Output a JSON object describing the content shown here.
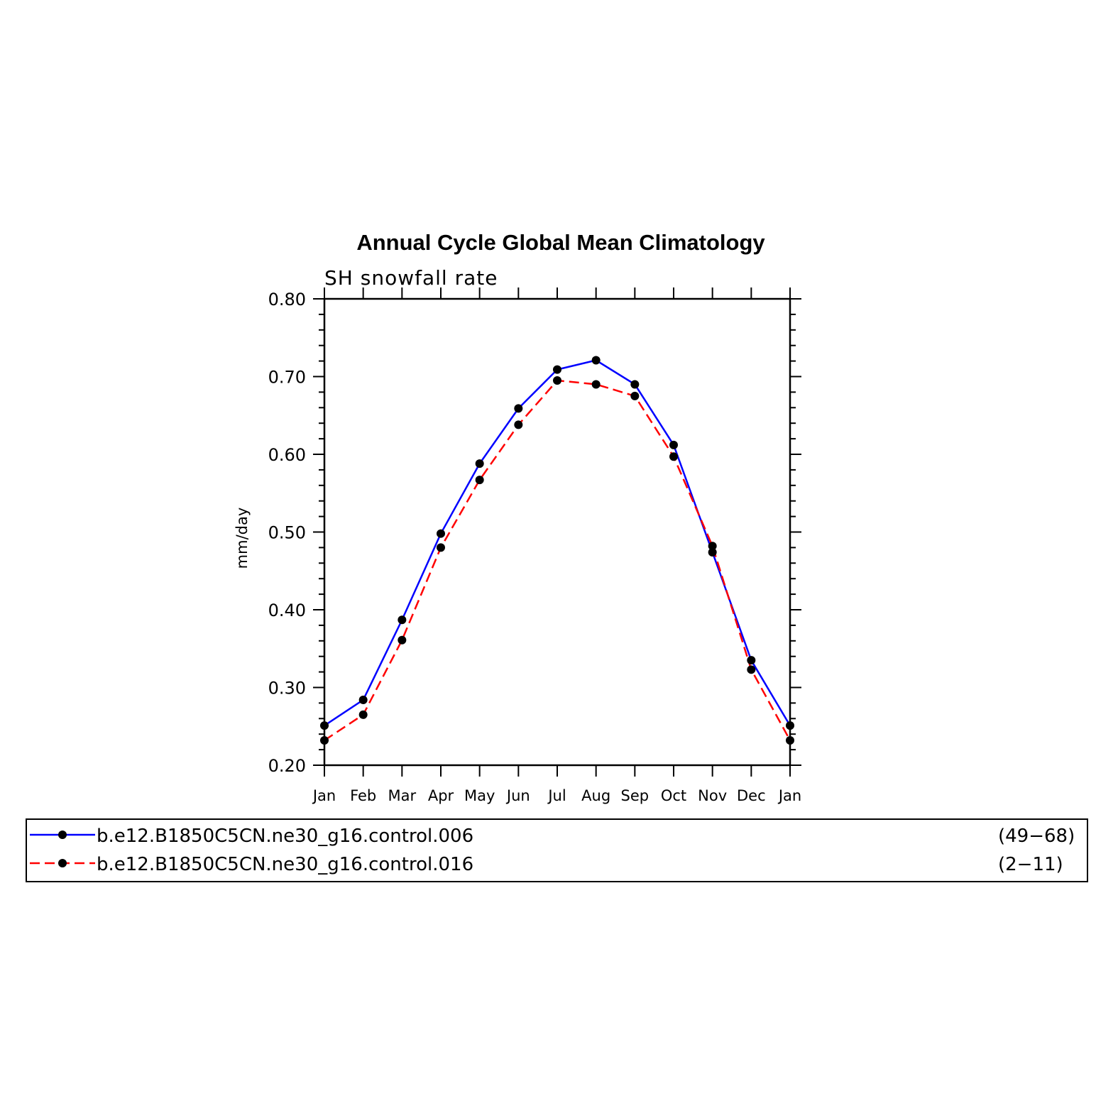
{
  "chart_data": {
    "type": "line",
    "title": "Annual Cycle Global Mean Climatology",
    "subtitle": "SH snowfall rate",
    "ylabel": "mm/day",
    "xlabel": "",
    "categories": [
      "Jan",
      "Feb",
      "Mar",
      "Apr",
      "May",
      "Jun",
      "Jul",
      "Aug",
      "Sep",
      "Oct",
      "Nov",
      "Dec",
      "Jan"
    ],
    "ylim": [
      0.2,
      0.8
    ],
    "yticks": [
      "0.20",
      "0.30",
      "0.40",
      "0.50",
      "0.60",
      "0.70",
      "0.80"
    ],
    "grid": false,
    "legend_position": "bottom",
    "series": [
      {
        "name": "b.e12.B1850C5CN.ne30_g16.control.006",
        "range": "(49−68)",
        "color": "#0000ff",
        "style": "solid",
        "values": [
          0.251,
          0.284,
          0.387,
          0.498,
          0.588,
          0.659,
          0.709,
          0.721,
          0.69,
          0.612,
          0.474,
          0.335,
          0.251
        ]
      },
      {
        "name": "b.e12.B1850C5CN.ne30_g16.control.016",
        "range": "(2−11)",
        "color": "#ff0000",
        "style": "dashed",
        "values": [
          0.232,
          0.265,
          0.361,
          0.48,
          0.567,
          0.638,
          0.695,
          0.69,
          0.675,
          0.597,
          0.482,
          0.323,
          0.232
        ]
      }
    ]
  }
}
